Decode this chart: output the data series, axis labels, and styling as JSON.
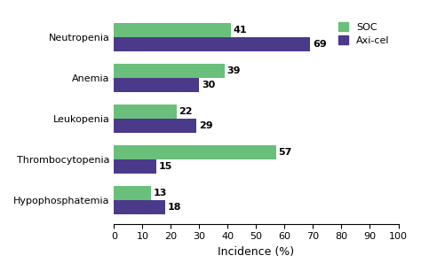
{
  "categories": [
    "Neutropenia",
    "Anemia",
    "Leukopenia",
    "Thrombocytopenia",
    "Hypophosphatemia"
  ],
  "soc_values": [
    41,
    39,
    22,
    57,
    13
  ],
  "axicel_values": [
    69,
    30,
    29,
    15,
    18
  ],
  "soc_color": "#6abf7b",
  "axicel_color": "#4b3a8a",
  "xlabel": "Incidence (%)",
  "xlim": [
    0,
    100
  ],
  "xticks": [
    0,
    10,
    20,
    30,
    40,
    50,
    60,
    70,
    80,
    90,
    100
  ],
  "legend_soc": "SOC",
  "legend_axicel": "Axi-cel",
  "bar_height": 0.35,
  "label_fontsize": 8,
  "tick_fontsize": 8,
  "axis_label_fontsize": 9,
  "background_color": "#ffffff"
}
